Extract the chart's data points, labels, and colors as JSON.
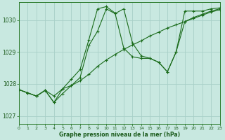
{
  "xlabel": "Graphe pression niveau de la mer (hPa)",
  "background_color": "#c8e8e0",
  "grid_color": "#a8d0c8",
  "line_color": "#1a6b1a",
  "xlim": [
    0,
    23
  ],
  "ylim": [
    1026.75,
    1030.55
  ],
  "yticks": [
    1027,
    1028,
    1029,
    1030
  ],
  "xticks": [
    0,
    1,
    2,
    3,
    4,
    5,
    6,
    7,
    8,
    9,
    10,
    11,
    12,
    13,
    14,
    15,
    16,
    17,
    18,
    19,
    20,
    21,
    22,
    23
  ],
  "series1": [
    1027.82,
    1027.72,
    1027.62,
    1027.8,
    1027.62,
    1027.85,
    1027.95,
    1028.1,
    1028.3,
    1028.55,
    1028.75,
    1028.92,
    1029.08,
    1029.22,
    1029.35,
    1029.5,
    1029.62,
    1029.75,
    1029.85,
    1029.95,
    1030.05,
    1030.15,
    1030.25,
    1030.32
  ],
  "series2": [
    1027.82,
    1027.72,
    1027.62,
    1027.8,
    1027.42,
    1027.7,
    1027.95,
    1028.2,
    1029.2,
    1029.65,
    1030.35,
    1030.2,
    1030.35,
    1029.28,
    1028.88,
    1028.8,
    1028.68,
    1028.38,
    1029.0,
    1030.28,
    1030.28,
    1030.28,
    1030.35,
    1030.38
  ],
  "series3": [
    1027.82,
    1027.72,
    1027.62,
    1027.8,
    1027.42,
    1027.85,
    1028.15,
    1028.45,
    1029.38,
    1030.35,
    1030.42,
    1030.22,
    1029.12,
    1028.85,
    1028.8,
    1028.8,
    1028.68,
    1028.38,
    1029.0,
    1029.95,
    1030.08,
    1030.18,
    1030.28,
    1030.35
  ]
}
